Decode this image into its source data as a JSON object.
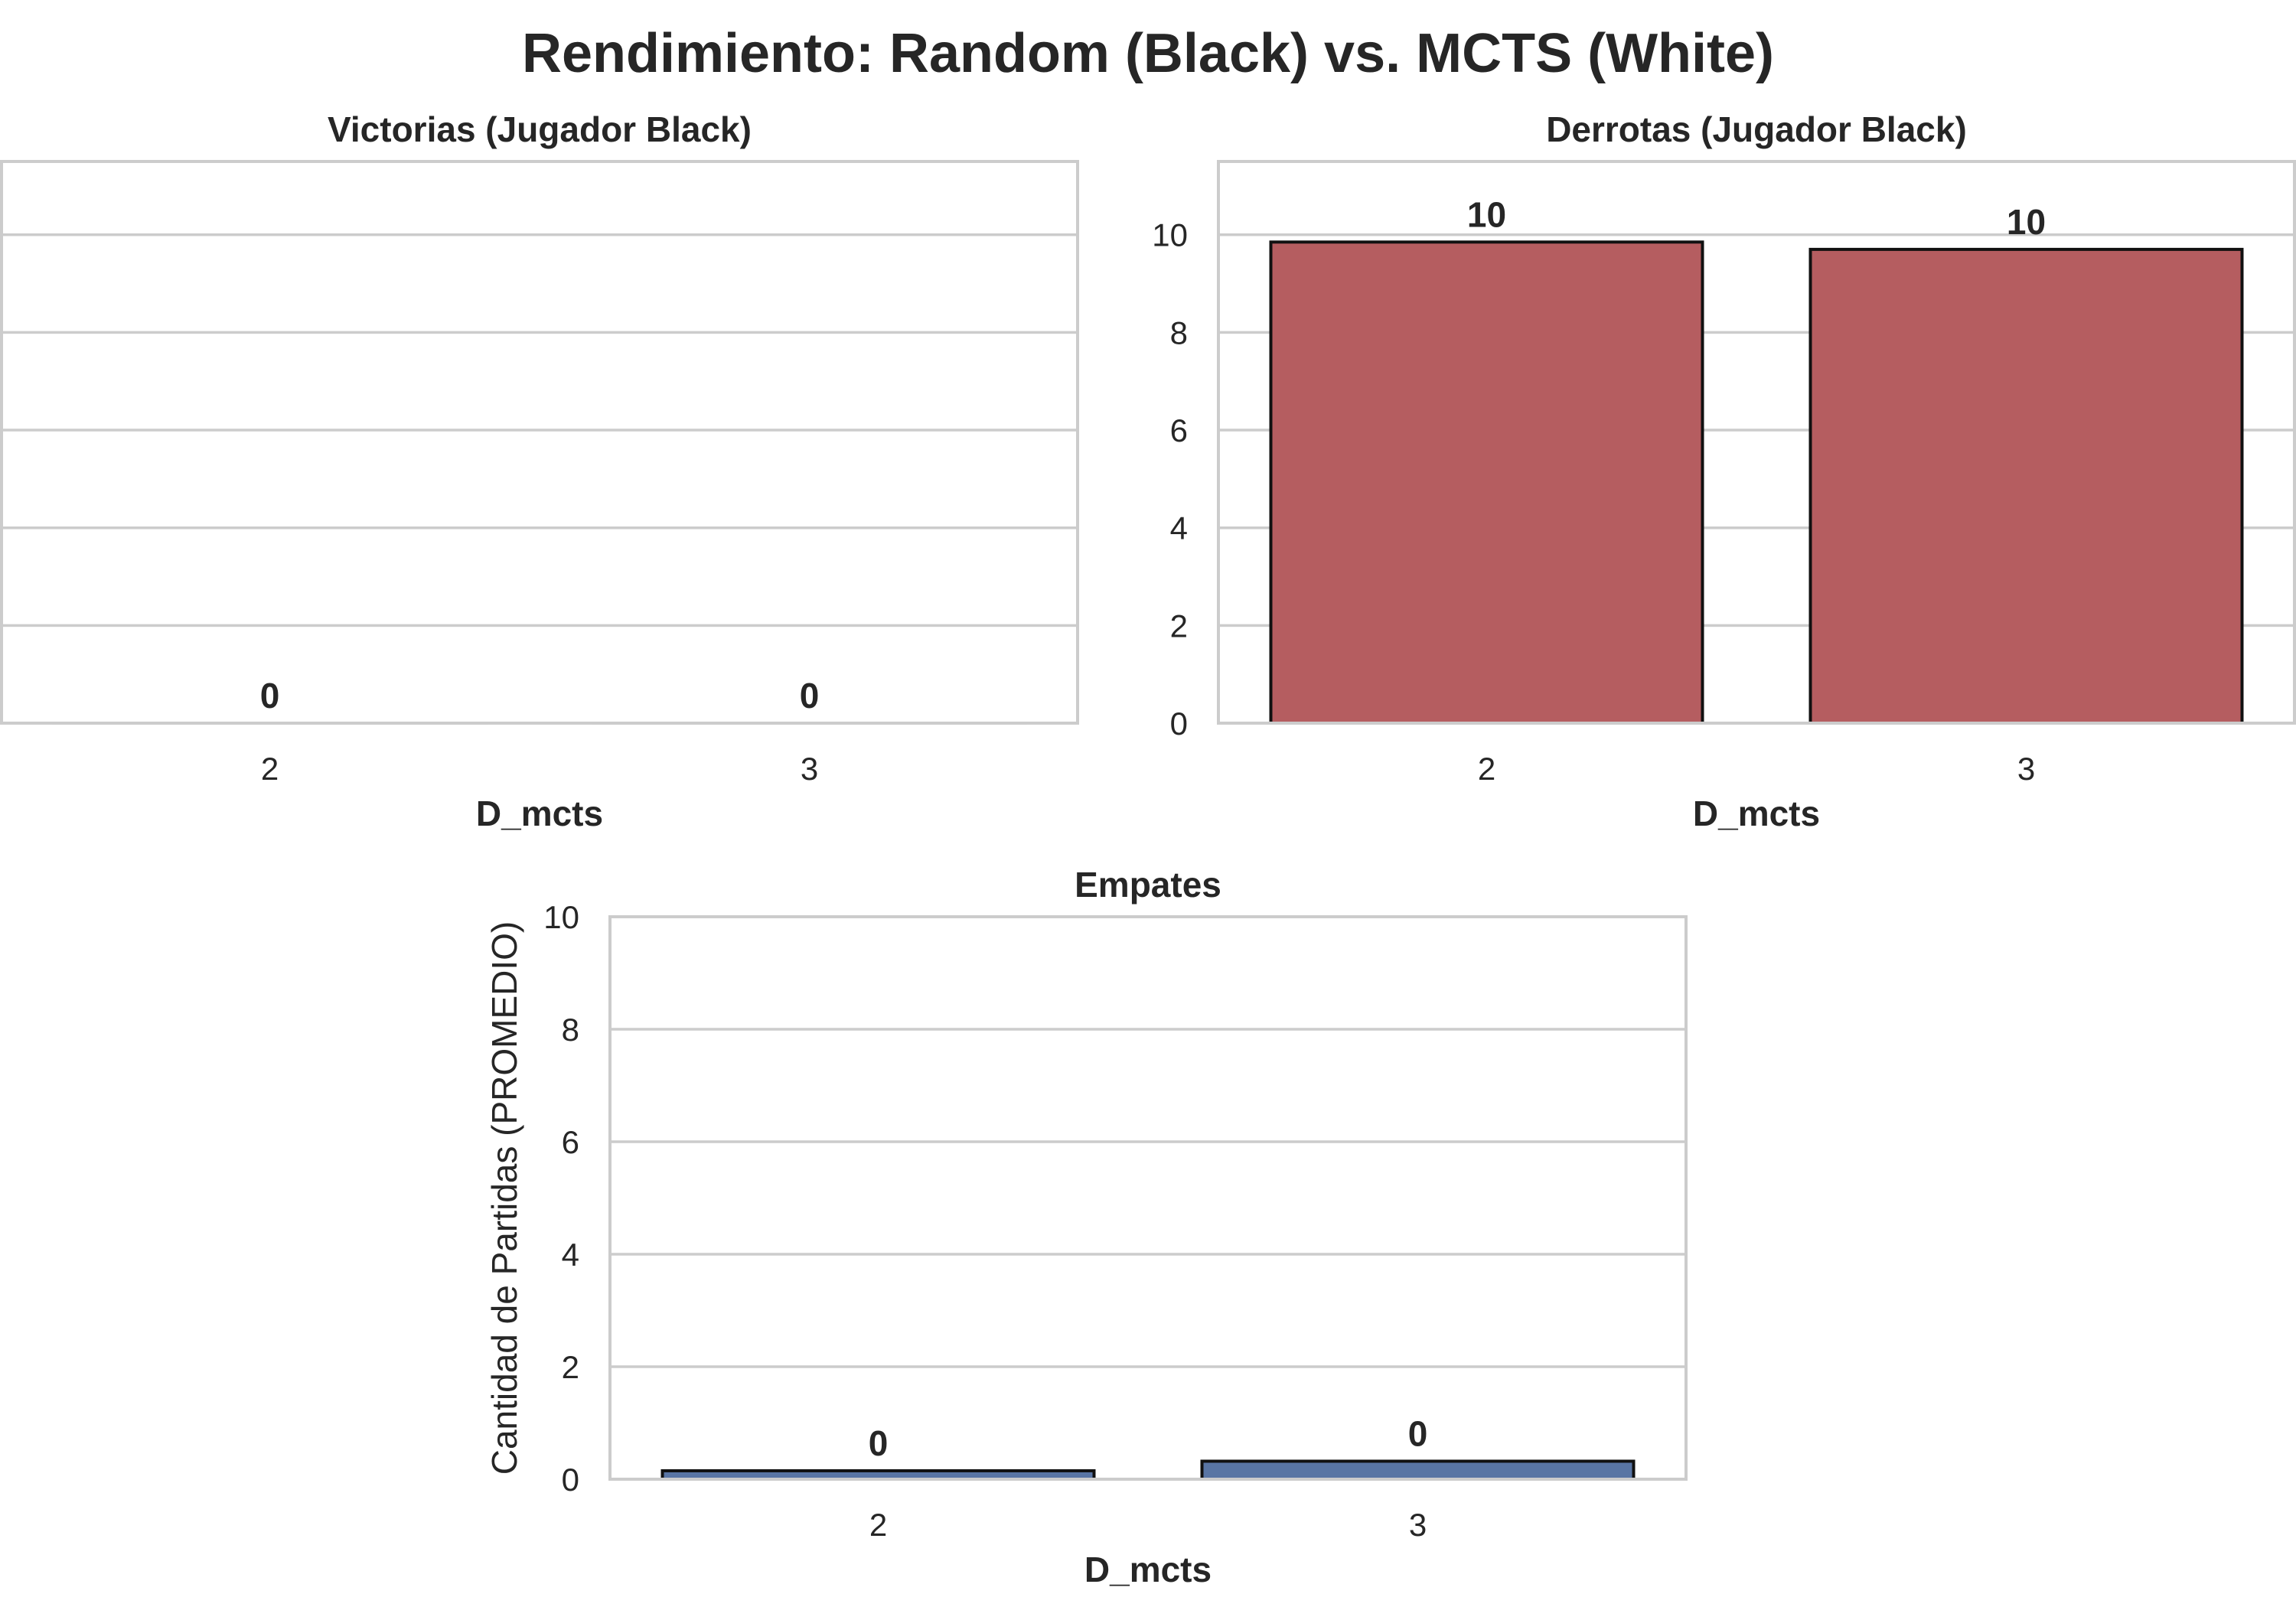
{
  "chart_data": {
    "title": "Rendimiento: Random (Black) vs. MCTS (White)",
    "type": "bar",
    "subplots": [
      {
        "id": "wins",
        "title": "Victorias (Jugador Black)",
        "xlabel": "D_mcts",
        "ylabel": "",
        "categories": [
          "2",
          "3"
        ],
        "values": [
          0,
          0
        ],
        "value_labels": [
          "0",
          "0"
        ],
        "ylim": [
          0,
          11.5
        ],
        "yticks": [
          0,
          2,
          4,
          6,
          8,
          10
        ],
        "show_ytick_labels": false,
        "bar_color": "#dd8452"
      },
      {
        "id": "losses",
        "title": "Derrotas (Jugador Black)",
        "xlabel": "D_mcts",
        "ylabel": "",
        "categories": [
          "2",
          "3"
        ],
        "values": [
          9.85,
          9.7
        ],
        "value_labels": [
          "10",
          "10"
        ],
        "ylim": [
          0,
          11.5
        ],
        "yticks": [
          0,
          2,
          4,
          6,
          8,
          10
        ],
        "ytick_labels": [
          "0",
          "2",
          "4",
          "6",
          "8",
          "10"
        ],
        "show_ytick_labels": true,
        "bar_color": "#b55d60"
      },
      {
        "id": "draws",
        "title": "Empates",
        "xlabel": "D_mcts",
        "ylabel": "Cantidad de Partidas (PROMEDIO)",
        "categories": [
          "2",
          "3"
        ],
        "values": [
          0.15,
          0.32
        ],
        "value_labels": [
          "0",
          "0"
        ],
        "ylim": [
          0,
          10
        ],
        "yticks": [
          0,
          2,
          4,
          6,
          8,
          10
        ],
        "ytick_labels": [
          "0",
          "2",
          "4",
          "6",
          "8",
          "10"
        ],
        "show_ytick_labels": true,
        "bar_color": "#5975a4"
      }
    ]
  }
}
